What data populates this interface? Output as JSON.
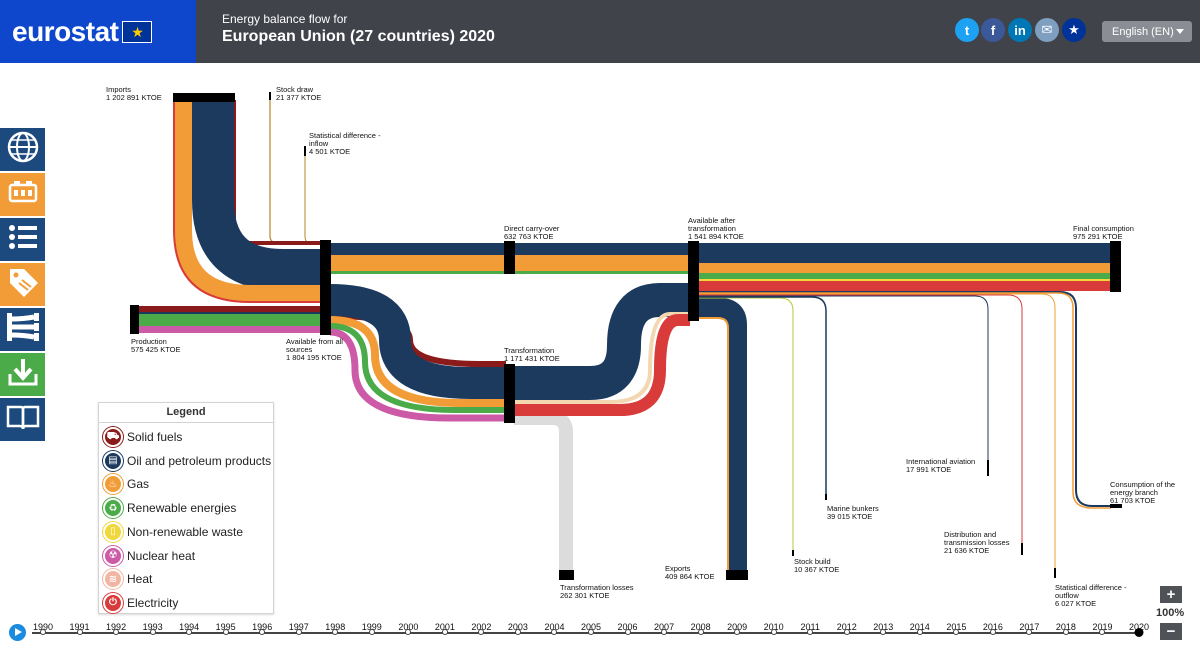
{
  "header": {
    "logo": "eurostat",
    "subtitle": "Energy balance flow for",
    "title": "European Union (27 countries) 2020",
    "share": [
      {
        "name": "twitter-icon",
        "glyph": "t",
        "color": "#1da1f2"
      },
      {
        "name": "facebook-icon",
        "glyph": "f",
        "color": "#3b5998"
      },
      {
        "name": "linkedin-icon",
        "glyph": "in",
        "color": "#0077b5"
      },
      {
        "name": "email-icon",
        "glyph": "✉",
        "color": "#7e9fc0"
      },
      {
        "name": "eu-icon",
        "glyph": "★",
        "color": "#003399"
      }
    ],
    "language": "English (EN)"
  },
  "toolbar": [
    {
      "name": "map-icon",
      "color": "navy"
    },
    {
      "name": "products-icon",
      "color": "orange"
    },
    {
      "name": "list-icon",
      "color": "navy"
    },
    {
      "name": "tag-icon",
      "color": "orange"
    },
    {
      "name": "sankey-icon",
      "color": "navy"
    },
    {
      "name": "download-icon",
      "color": "green"
    },
    {
      "name": "book-icon",
      "color": "navy"
    }
  ],
  "legend": {
    "title": "Legend",
    "items": [
      {
        "label": "Solid fuels",
        "color": "#8b1a1a",
        "icon": "cart-icon"
      },
      {
        "label": "Oil and petroleum products",
        "color": "#1c3a5e",
        "icon": "barrel-icon"
      },
      {
        "label": "Gas",
        "color": "#f29c38",
        "icon": "flame-icon"
      },
      {
        "label": "Renewable energies",
        "color": "#4aab48",
        "icon": "recycle-icon"
      },
      {
        "label": "Non-renewable waste",
        "color": "#f1d73a",
        "icon": "bin-icon"
      },
      {
        "label": "Nuclear heat",
        "color": "#cc5aa6",
        "icon": "radiation-icon"
      },
      {
        "label": "Heat",
        "color": "#f3b5a3",
        "icon": "heat-icon"
      },
      {
        "label": "Electricity",
        "color": "#d93a3a",
        "icon": "plug-icon"
      }
    ]
  },
  "labels": {
    "imports": [
      "Imports",
      "1 202 891 KTOE"
    ],
    "stock_draw": [
      "Stock draw",
      "21 377 KTOE"
    ],
    "stat_diff_in": [
      "Statistical difference -",
      "inflow",
      "4 501 KTOE"
    ],
    "production": [
      "Production",
      "575 425 KTOE"
    ],
    "available_all": [
      "Available from all",
      "sources",
      "1 804 195 KTOE"
    ],
    "direct_carry": [
      "Direct carry-over",
      "632 763 KTOE"
    ],
    "transformation": [
      "Transformation",
      "1 171 431 KTOE"
    ],
    "available_after": [
      "Available after",
      "transformation",
      "1 541 894 KTOE"
    ],
    "final_consumption": [
      "Final consumption",
      "975 291 KTOE"
    ],
    "transformation_losses": [
      "Transformation losses",
      "262 301 KTOE"
    ],
    "exports": [
      "Exports",
      "409 864 KTOE"
    ],
    "stock_build": [
      "Stock build",
      "10 367 KTOE"
    ],
    "marine_bunkers": [
      "Marine bunkers",
      "39 015 KTOE"
    ],
    "intl_aviation": [
      "International aviation",
      "17 991 KTOE"
    ],
    "distribution": [
      "Distribution and",
      "transmission losses",
      "21 636 KTOE"
    ],
    "consumption_energy": [
      "Consumption of the",
      "energy branch",
      "61 703 KTOE"
    ],
    "stat_diff_out": [
      "Statistical difference -",
      "outflow",
      "6 027 KTOE"
    ]
  },
  "timeline": {
    "years": [
      "1990",
      "1991",
      "1992",
      "1993",
      "1994",
      "1995",
      "1996",
      "1997",
      "1998",
      "1999",
      "2000",
      "2001",
      "2002",
      "2003",
      "2004",
      "2005",
      "2006",
      "2007",
      "2008",
      "2009",
      "2010",
      "2011",
      "2012",
      "2013",
      "2014",
      "2015",
      "2016",
      "2017",
      "2018",
      "2019",
      "2020"
    ],
    "selected": "2020"
  },
  "zoom": {
    "plus": "+",
    "level": "100%",
    "minus": "−"
  }
}
